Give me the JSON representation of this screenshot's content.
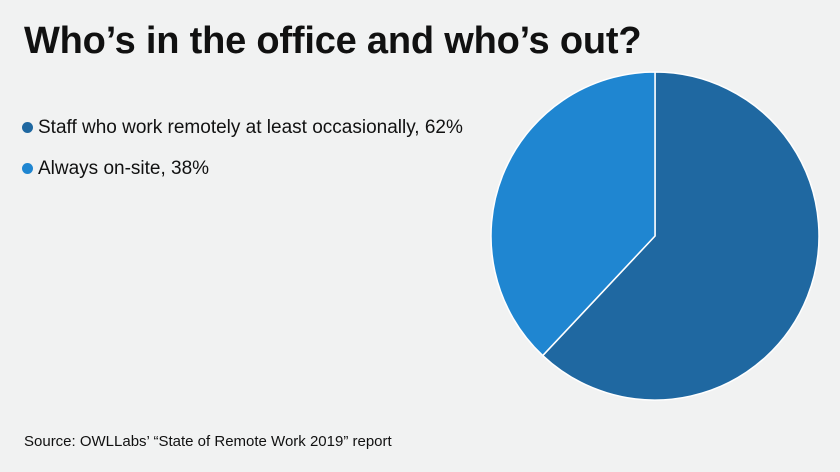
{
  "title": "Who’s in the office and who’s out?",
  "source": "Source: OWLLabs’ “State of Remote Work 2019” report",
  "chart_data": {
    "type": "pie",
    "title": "Who’s in the office and who’s out?",
    "slices": [
      {
        "label": "Staff who work remotely at least occasionally, 62%",
        "value": 62,
        "color": "#1f68a1"
      },
      {
        "label": "Always on-site, 38%",
        "value": 38,
        "color": "#1f86d1"
      }
    ],
    "start_angle_deg": 0,
    "direction": "clockwise",
    "legend_position": "left",
    "slice_border_color": "#ffffff"
  }
}
